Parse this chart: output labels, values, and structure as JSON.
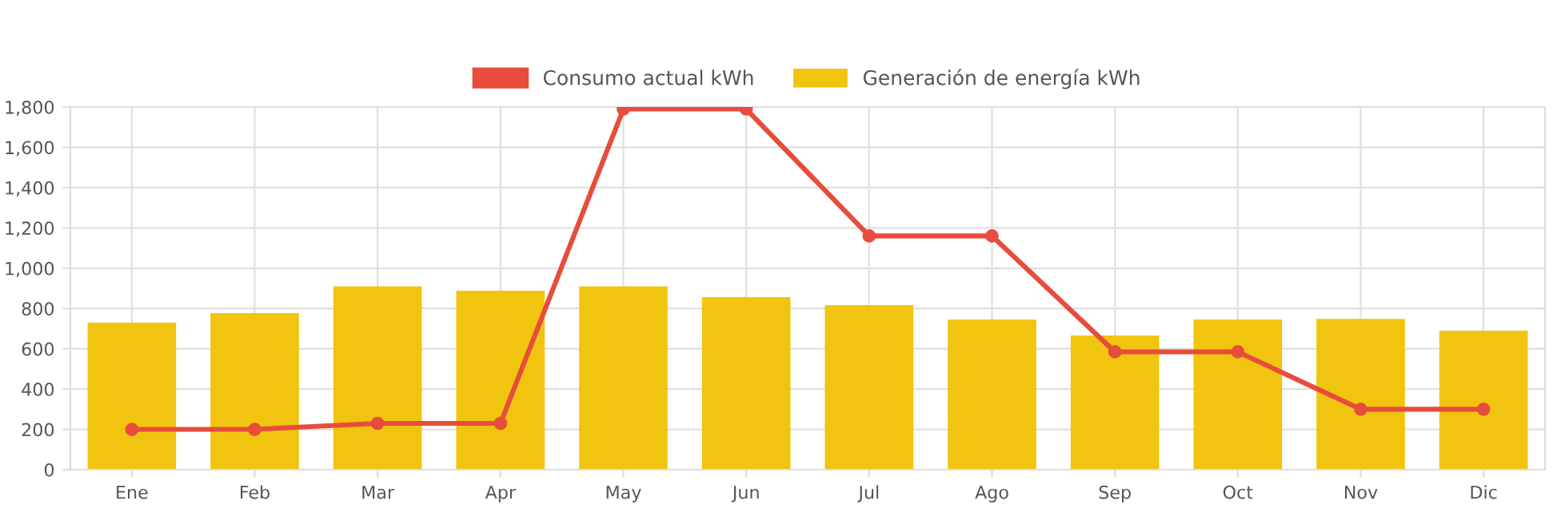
{
  "chart_data": {
    "type": "bar",
    "categories": [
      "Ene",
      "Feb",
      "Mar",
      "Apr",
      "May",
      "Jun",
      "Jul",
      "Ago",
      "Sep",
      "Oct",
      "Nov",
      "Dic"
    ],
    "series": [
      {
        "name": "Consumo actual kWh",
        "type": "line",
        "color": "#e74c3c",
        "values": [
          200,
          200,
          230,
          230,
          1790,
          1790,
          1160,
          1160,
          585,
          585,
          300,
          300
        ]
      },
      {
        "name": "Generación de energía kWh",
        "color": "#f1c40f",
        "values": [
          730,
          777,
          910,
          888,
          910,
          856,
          817,
          745,
          666,
          745,
          748,
          690
        ]
      }
    ],
    "ylim": [
      0,
      1800
    ],
    "yticks": [
      0,
      200,
      400,
      600,
      800,
      {
        "value": 1000,
        "label": "1,000"
      },
      {
        "value": 1200,
        "label": "1,200"
      },
      {
        "value": 1400,
        "label": "1,400"
      },
      {
        "value": 1600,
        "label": "1,600"
      },
      {
        "value": 1800,
        "label": "1,800"
      }
    ],
    "grid": true,
    "legend": "top",
    "marker": "circle"
  }
}
